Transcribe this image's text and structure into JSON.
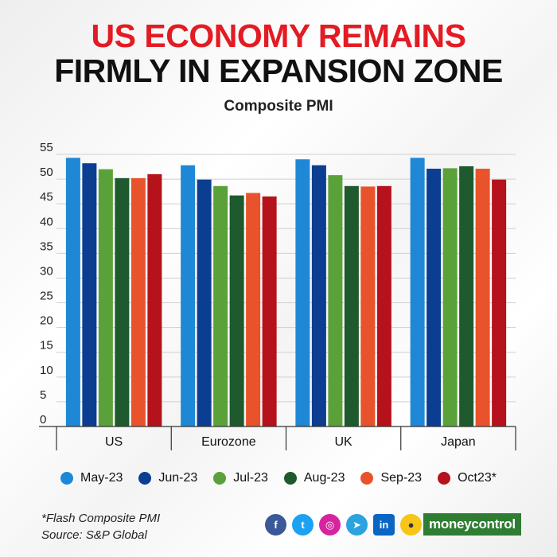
{
  "header": {
    "title_line1": "US ECONOMY REMAINS",
    "title_line2": "FIRMLY IN EXPANSION ZONE",
    "subtitle": "Composite PMI"
  },
  "colors": {
    "title_red": "#e31b23",
    "series": [
      "#1e88d6",
      "#0b3d91",
      "#5aa13a",
      "#1e5a2e",
      "#e8532b",
      "#b5121b"
    ]
  },
  "chart_data": {
    "type": "bar",
    "title": "Composite PMI",
    "categories": [
      "US",
      "Eurozone",
      "UK",
      "Japan"
    ],
    "series": [
      {
        "name": "May-23",
        "values": [
          54.3,
          52.8,
          54.0,
          54.3
        ]
      },
      {
        "name": "Jun-23",
        "values": [
          53.2,
          49.9,
          52.8,
          52.1
        ]
      },
      {
        "name": "Jul-23",
        "values": [
          52.0,
          48.6,
          50.8,
          52.2
        ]
      },
      {
        "name": "Aug-23",
        "values": [
          50.2,
          46.7,
          48.6,
          52.6
        ]
      },
      {
        "name": "Sep-23",
        "values": [
          50.2,
          47.2,
          48.5,
          52.1
        ]
      },
      {
        "name": "Oct23*",
        "values": [
          51.0,
          46.5,
          48.6,
          49.9
        ]
      }
    ],
    "ylim": [
      0,
      55
    ],
    "yticks": [
      0,
      5,
      10,
      15,
      20,
      25,
      30,
      35,
      40,
      45,
      50,
      55
    ],
    "grid": true,
    "legend_position": "bottom"
  },
  "footer": {
    "footnote": "*Flash Composite PMI",
    "source": "Source: S&P Global",
    "brand_part1": "money",
    "brand_part2": "control",
    "social_icons": [
      "facebook-icon",
      "twitter-icon",
      "instagram-icon",
      "telegram-icon",
      "linkedin-icon",
      "koo-icon"
    ]
  }
}
